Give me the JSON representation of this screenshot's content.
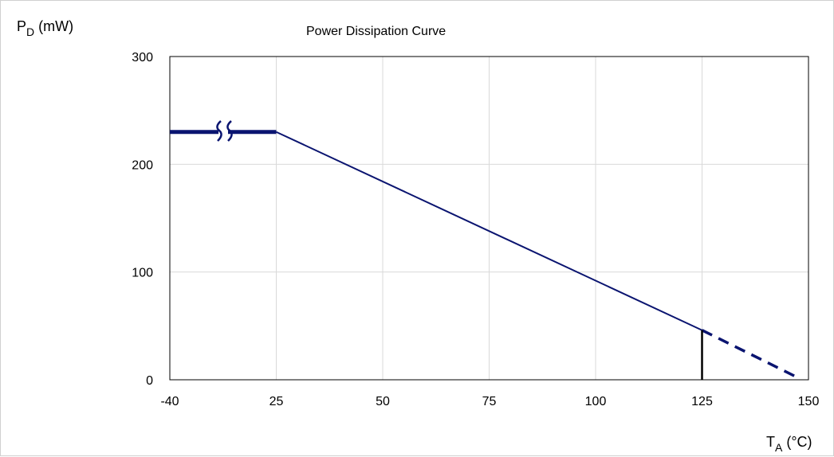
{
  "chart_data": {
    "type": "line",
    "title": "Power Dissipation Curve",
    "ylabel": {
      "main": "P",
      "sub": "D",
      "unit": " (mW)"
    },
    "xlabel": {
      "main": "T",
      "sub": "A",
      "unit": " (°C)"
    },
    "x_tick_labels": [
      "-40",
      "25",
      "50",
      "75",
      "100",
      "125",
      "150"
    ],
    "y_tick_labels": [
      "0",
      "100",
      "200",
      "300"
    ],
    "x_ticks": [
      0,
      25,
      50,
      75,
      100,
      125,
      150
    ],
    "y_ticks": [
      0,
      100,
      200,
      300
    ],
    "xlim": [
      0,
      150
    ],
    "ylim": [
      0,
      300
    ],
    "grid": true,
    "axis_break_note": "x axis broken between -40 and 25",
    "series": [
      {
        "style": "thick",
        "color": "#0a1470",
        "x": [
          0,
          25
        ],
        "y": [
          230,
          230
        ]
      },
      {
        "style": "solid",
        "color": "#0a1470",
        "x": [
          25,
          125
        ],
        "y": [
          230,
          46
        ]
      },
      {
        "style": "dashed",
        "color": "#0a1470",
        "x": [
          125,
          147
        ],
        "y": [
          46,
          3
        ]
      }
    ],
    "marker_lines": [
      {
        "color": "#000000",
        "x": 125,
        "y": [
          0,
          46
        ]
      }
    ]
  }
}
